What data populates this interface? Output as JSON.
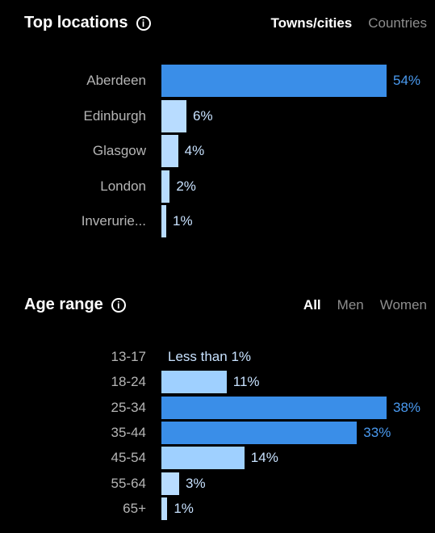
{
  "locations": {
    "title": "Top locations",
    "info_icon": "info-icon",
    "tabs": [
      {
        "label": "Towns/cities",
        "active": true
      },
      {
        "label": "Countries",
        "active": false
      }
    ],
    "rows": [
      {
        "label": "Aberdeen",
        "value": 54,
        "value_label": "54%"
      },
      {
        "label": "Edinburgh",
        "value": 6,
        "value_label": "6%"
      },
      {
        "label": "Glasgow",
        "value": 4,
        "value_label": "4%"
      },
      {
        "label": "London",
        "value": 2,
        "value_label": "2%"
      },
      {
        "label": "Inverurie...",
        "value": 1,
        "value_label": "1%"
      }
    ]
  },
  "age": {
    "title": "Age range",
    "info_icon": "info-icon",
    "tabs": [
      {
        "label": "All",
        "active": true
      },
      {
        "label": "Men",
        "active": false
      },
      {
        "label": "Women",
        "active": false
      }
    ],
    "rows": [
      {
        "label": "13-17",
        "value": 0,
        "value_label": "Less than 1%"
      },
      {
        "label": "18-24",
        "value": 11,
        "value_label": "11%"
      },
      {
        "label": "25-34",
        "value": 38,
        "value_label": "38%"
      },
      {
        "label": "35-44",
        "value": 33,
        "value_label": "33%"
      },
      {
        "label": "45-54",
        "value": 14,
        "value_label": "14%"
      },
      {
        "label": "55-64",
        "value": 3,
        "value_label": "3%"
      },
      {
        "label": "65+",
        "value": 1,
        "value_label": "1%"
      }
    ]
  },
  "colors": {
    "top_bar": "#3a8ee8",
    "top_value": "#4a9af0",
    "light_bar": "#b8dcff",
    "light_value": "#c8e2ff",
    "mid_bar": "#9fd0ff"
  }
}
